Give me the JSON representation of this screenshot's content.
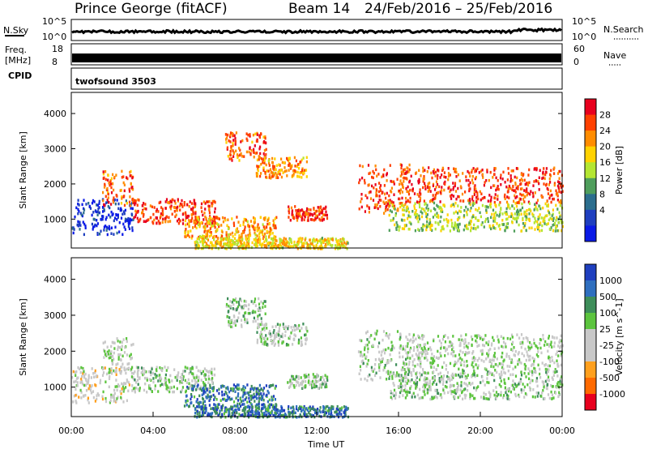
{
  "header": {
    "site": "Prince George (fitACF)",
    "beam": "Beam 14",
    "date_range": "24/Feb/2016 – 25/Feb/2016"
  },
  "panels": {
    "nsky": {
      "label": "N.Sky",
      "ticks_left": [
        "10^5",
        "10^0"
      ],
      "ticks_right": [
        "10^5",
        "10^0"
      ],
      "right_label": "N.Search"
    },
    "freq": {
      "label_line1": "Freq.",
      "label_line2": "[MHz]",
      "ticks_left": [
        "18",
        "8"
      ],
      "ticks_right": [
        "60",
        "0"
      ],
      "right_label": "Nave"
    },
    "cpid": {
      "label": "CPID",
      "value": "twofsound 3503"
    }
  },
  "chart_data": [
    {
      "type": "heatmap",
      "title": "",
      "ylabel": "Slant Range [km]",
      "xlabel": "",
      "ylim": [
        180,
        4600
      ],
      "yticks": [
        1000,
        2000,
        3000,
        4000
      ],
      "xlim_hours": [
        0,
        24
      ],
      "colorbar": {
        "label": "Power [dB]",
        "ticks": [
          "28",
          "24",
          "20",
          "16",
          "12",
          "8",
          "4"
        ],
        "colors": [
          "#e8001e",
          "#ff4000",
          "#ff8c00",
          "#ffd200",
          "#b4e632",
          "#4f9e5c",
          "#2c6e8e",
          "#1f3fbf",
          "#0a1ae6"
        ]
      },
      "regions": [
        {
          "t0": 0.0,
          "t1": 3.0,
          "r0": 600,
          "r1": 1600,
          "c": [
            0.9,
            0.6,
            0.2
          ]
        },
        {
          "t0": 1.5,
          "t1": 3.0,
          "r0": 1400,
          "r1": 2400,
          "c": [
            0.2,
            0.4,
            0.6
          ]
        },
        {
          "t0": 3.0,
          "t1": 7.0,
          "r0": 900,
          "r1": 1600,
          "c": [
            0.15,
            0.3,
            0.55
          ]
        },
        {
          "t0": 5.5,
          "t1": 10.0,
          "r0": 500,
          "r1": 1100,
          "c": [
            0.3,
            0.5,
            0.8
          ]
        },
        {
          "t0": 7.5,
          "t1": 9.5,
          "r0": 2700,
          "r1": 3500,
          "c": [
            0.2,
            0.35,
            0.55
          ]
        },
        {
          "t0": 9.0,
          "t1": 11.5,
          "r0": 2200,
          "r1": 2800,
          "c": [
            0.3,
            0.45,
            0.6
          ]
        },
        {
          "t0": 10.5,
          "t1": 12.5,
          "r0": 1000,
          "r1": 1400,
          "c": [
            0.15,
            0.25,
            0.5
          ]
        },
        {
          "t0": 14.0,
          "t1": 16.5,
          "r0": 1200,
          "r1": 2600,
          "c": [
            0.15,
            0.3,
            0.6
          ]
        },
        {
          "t0": 16.0,
          "t1": 24.0,
          "r0": 1500,
          "r1": 2500,
          "c": [
            0.15,
            0.3,
            0.5
          ]
        },
        {
          "t0": 15.5,
          "t1": 24.0,
          "r0": 700,
          "r1": 1500,
          "c": [
            0.5,
            0.75,
            0.95
          ]
        },
        {
          "t0": 6.0,
          "t1": 13.5,
          "r0": 200,
          "r1": 500,
          "c": [
            0.4,
            0.7,
            0.9
          ]
        }
      ]
    },
    {
      "type": "heatmap",
      "title": "",
      "ylabel": "Slant Range [km]",
      "xlabel": "Time UT",
      "ylim": [
        180,
        4600
      ],
      "yticks": [
        1000,
        2000,
        3000,
        4000
      ],
      "xticks": [
        "00:00",
        "04:00",
        "08:00",
        "12:00",
        "16:00",
        "20:00",
        "00:00"
      ],
      "xlim_hours": [
        0,
        24
      ],
      "colorbar": {
        "label": "Velocity [m s^-1]",
        "ticks": [
          "1000",
          "500",
          "100",
          "25",
          "-25",
          "-100",
          "-500",
          "-1000"
        ],
        "colors": [
          "#1f3fbf",
          "#2f6fbf",
          "#3e8e5a",
          "#5cc43e",
          "#c8c8c8",
          "#c8c8c8",
          "#ffa01e",
          "#ff6a00",
          "#e8001e"
        ]
      },
      "regions": [
        {
          "t0": 0.0,
          "t1": 3.0,
          "r0": 600,
          "r1": 1600,
          "c": [
            0.55,
            0.7,
            0.85
          ]
        },
        {
          "t0": 1.5,
          "t1": 3.0,
          "r0": 1400,
          "r1": 2400,
          "c": [
            0.5,
            0.7,
            0.85
          ]
        },
        {
          "t0": 3.0,
          "t1": 7.0,
          "r0": 900,
          "r1": 1600,
          "c": [
            0.45,
            0.5,
            0.55
          ]
        },
        {
          "t0": 5.5,
          "t1": 10.0,
          "r0": 500,
          "r1": 1100,
          "c": [
            0.2,
            0.35,
            0.5
          ]
        },
        {
          "t0": 7.5,
          "t1": 9.5,
          "r0": 2700,
          "r1": 3500,
          "c": [
            0.45,
            0.5,
            0.55
          ]
        },
        {
          "t0": 9.0,
          "t1": 11.5,
          "r0": 2200,
          "r1": 2800,
          "c": [
            0.45,
            0.5,
            0.55
          ]
        },
        {
          "t0": 10.5,
          "t1": 12.5,
          "r0": 1000,
          "r1": 1400,
          "c": [
            0.45,
            0.5,
            0.55
          ]
        },
        {
          "t0": 14.0,
          "t1": 16.5,
          "r0": 1200,
          "r1": 2600,
          "c": [
            0.45,
            0.55,
            0.7
          ]
        },
        {
          "t0": 16.0,
          "t1": 24.0,
          "r0": 1500,
          "r1": 2500,
          "c": [
            0.5,
            0.7,
            0.85
          ]
        },
        {
          "t0": 15.5,
          "t1": 24.0,
          "r0": 700,
          "r1": 1500,
          "c": [
            0.45,
            0.5,
            0.55
          ]
        },
        {
          "t0": 6.0,
          "t1": 13.5,
          "r0": 200,
          "r1": 500,
          "c": [
            0.2,
            0.3,
            0.45
          ]
        }
      ]
    }
  ]
}
